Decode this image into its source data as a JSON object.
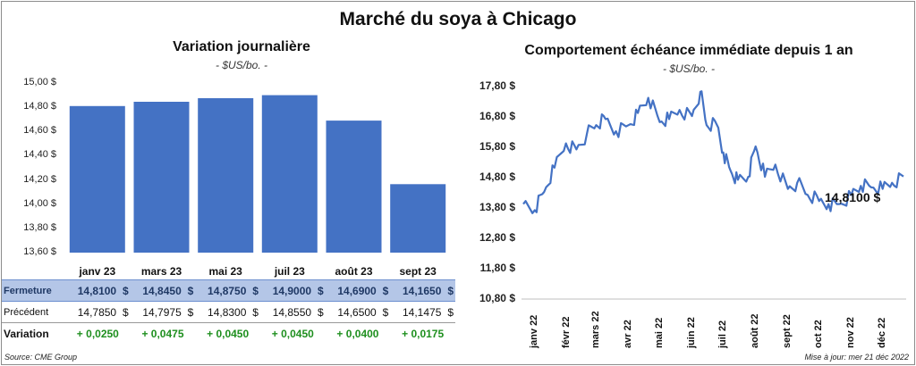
{
  "title": "Marché du soya à Chicago",
  "left_chart": {
    "title": "Variation  journalière",
    "unit": "- $US/bo. -",
    "y_ticks": [
      "15,00 $",
      "14,80 $",
      "14,60 $",
      "14,40 $",
      "14,20 $",
      "14,00 $",
      "13,80 $",
      "13,60 $"
    ]
  },
  "right_chart": {
    "title": "Comportement  échéance immédiate depuis 1 an",
    "unit": "- $US/bo. -",
    "y_ticks": [
      "17,80 $",
      "16,80 $",
      "15,80 $",
      "14,80 $",
      "13,80 $",
      "12,80 $",
      "11,80 $",
      "10,80 $"
    ],
    "x_ticks": [
      "janv 22",
      "févr 22",
      "mars 22",
      "avr 22",
      "mai 22",
      "juin 22",
      "juil 22",
      "août 22",
      "sept 22",
      "oct 22",
      "nov 22",
      "déc 22"
    ],
    "last_label": "14,8100 $",
    "line_color": "#4472c4"
  },
  "table": {
    "rows": [
      {
        "label": "Fermeture",
        "values": [
          "14,8100",
          "14,8450",
          "14,8750",
          "14,9000",
          "14,6900",
          "14,1650"
        ],
        "currency": "$"
      },
      {
        "label": "Précédent",
        "values": [
          "14,7850",
          "14,7975",
          "14,8300",
          "14,8550",
          "14,6500",
          "14,1475"
        ],
        "currency": "$"
      },
      {
        "label": "Variation",
        "values": [
          "+ 0,0250",
          "+ 0,0475",
          "+ 0,0450",
          "+ 0,0450",
          "+ 0,0400",
          "+ 0,0175"
        ]
      }
    ]
  },
  "source": "Source: CME Group",
  "updated": "Mise à jour: mer 21 déc 2022",
  "chart_data": [
    {
      "type": "bar",
      "title": "Variation  journalière",
      "ylabel": "- $US/bo. -",
      "categories": [
        "janv 23",
        "mars 23",
        "mai 23",
        "juil 23",
        "août 23",
        "sept 23"
      ],
      "values": [
        14.81,
        14.845,
        14.875,
        14.9,
        14.69,
        14.165
      ],
      "ylim": [
        13.6,
        15.0
      ],
      "color": "#4472c4",
      "grid": false
    },
    {
      "type": "line",
      "title": "Comportement  échéance immédiate depuis 1 an",
      "ylabel": "- $US/bo. -",
      "ylim": [
        10.8,
        17.8
      ],
      "x": [
        "2021-12-21",
        "2022-01-01",
        "2022-01-10",
        "2022-01-20",
        "2022-01-31",
        "2022-02-10",
        "2022-02-20",
        "2022-03-01",
        "2022-03-10",
        "2022-03-20",
        "2022-04-01",
        "2022-04-10",
        "2022-04-20",
        "2022-05-01",
        "2022-05-10",
        "2022-05-20",
        "2022-06-01",
        "2022-06-09",
        "2022-06-15",
        "2022-06-25",
        "2022-07-01",
        "2022-07-08",
        "2022-07-15",
        "2022-07-25",
        "2022-08-01",
        "2022-08-10",
        "2022-08-20",
        "2022-09-01",
        "2022-09-10",
        "2022-09-20",
        "2022-10-01",
        "2022-10-10",
        "2022-10-20",
        "2022-11-01",
        "2022-11-10",
        "2022-11-20",
        "2022-12-01",
        "2022-12-10",
        "2022-12-21"
      ],
      "series": [
        {
          "values": [
            13.9,
            13.7,
            14.3,
            15.1,
            15.9,
            15.7,
            16.2,
            16.5,
            16.7,
            16.3,
            16.5,
            16.9,
            17.4,
            16.6,
            16.7,
            17.0,
            16.8,
            17.6,
            16.5,
            16.5,
            15.6,
            15.0,
            14.7,
            14.8,
            15.8,
            14.8,
            15.2,
            14.4,
            14.6,
            14.2,
            14.0,
            13.9,
            13.9,
            14.2,
            14.5,
            14.45,
            14.4,
            14.6,
            14.81
          ]
        }
      ]
    }
  ]
}
